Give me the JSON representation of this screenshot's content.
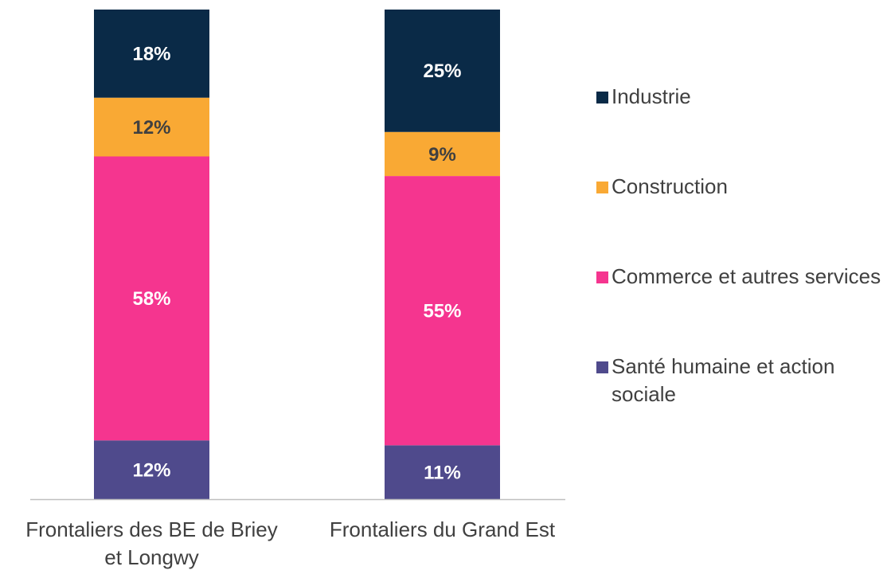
{
  "chart_data": {
    "type": "stacked_bar",
    "categories": [
      "Frontaliers des BE de Briey et Longwy",
      "Frontaliers du Grand Est"
    ],
    "ylim": [
      0,
      100
    ],
    "legend": "right",
    "series": [
      {
        "name": "Santé humaine et action sociale",
        "color": "#4f4a8c",
        "label_color": "#ffffff",
        "values": [
          12,
          11
        ],
        "value_labels": [
          "12%",
          "11%"
        ]
      },
      {
        "name": "Commerce et autres services",
        "color": "#f5358f",
        "label_color": "#ffffff",
        "values": [
          58,
          55
        ],
        "value_labels": [
          "58%",
          "55%"
        ]
      },
      {
        "name": "Construction",
        "color": "#f9a934",
        "label_color": "#404040",
        "values": [
          12,
          9
        ],
        "value_labels": [
          "12%",
          "9%"
        ]
      },
      {
        "name": "Industrie",
        "color": "#0a2a47",
        "label_color": "#ffffff",
        "values": [
          18,
          25
        ],
        "value_labels": [
          "18%",
          "25%"
        ]
      }
    ]
  }
}
